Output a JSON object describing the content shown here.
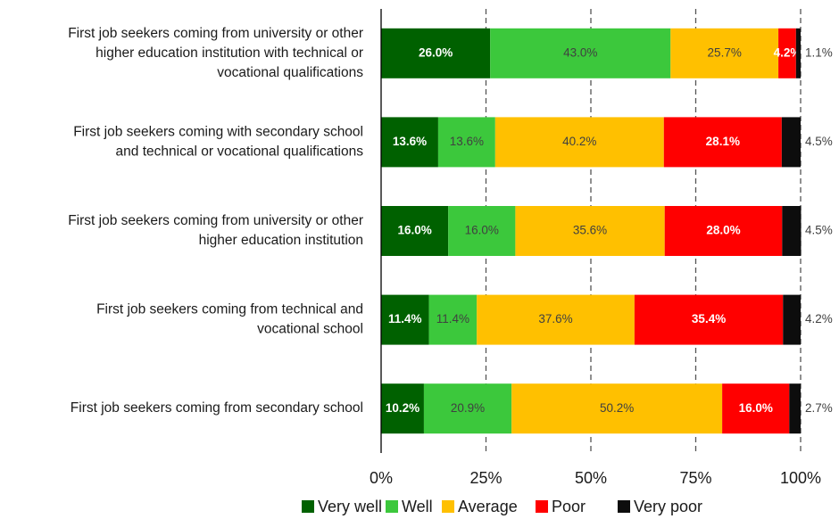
{
  "chart_data": {
    "type": "stacked_barh",
    "categories": [
      "First job seekers coming from university or other higher education institution with technical or vocational qualifications",
      "First job seekers coming with secondary school and technical or vocational qualifications",
      "First job seekers coming from university or other higher education institution",
      "First job seekers coming from technical and vocational school",
      "First job seekers coming from secondary school"
    ],
    "series": [
      {
        "name": "Very well",
        "color": "#006100",
        "label_color": "#ffffff",
        "values": [
          26.0,
          13.6,
          16.0,
          11.4,
          10.2
        ],
        "value_labels": [
          "26.0%",
          "13.6%",
          "16.0%",
          "11.4%",
          "10.2%"
        ]
      },
      {
        "name": "Well",
        "color": "#3cc83c",
        "label_color": "#404040",
        "values": [
          43.0,
          13.6,
          16.0,
          11.4,
          20.9
        ],
        "value_labels": [
          "43.0%",
          "13.6%",
          "16.0%",
          "11.4%",
          "20.9%"
        ]
      },
      {
        "name": "Average",
        "color": "#ffc000",
        "label_color": "#404040",
        "values": [
          25.7,
          40.2,
          35.6,
          37.6,
          50.2
        ],
        "value_labels": [
          "25.7%",
          "40.2%",
          "35.6%",
          "37.6%",
          "50.2%"
        ]
      },
      {
        "name": "Poor",
        "color": "#ff0000",
        "label_color": "#ffffff",
        "values": [
          4.2,
          28.1,
          28.0,
          35.4,
          16.0
        ],
        "value_labels": [
          "4.2%",
          "28.1%",
          "28.0%",
          "35.4%",
          "16.0%"
        ]
      },
      {
        "name": "Very poor",
        "color": "#0d0d0d",
        "label_color": "#404040",
        "values": [
          1.1,
          4.5,
          4.5,
          4.2,
          2.7
        ],
        "value_labels": [
          "1.1%",
          "4.5%",
          "4.5%",
          "4.2%",
          "2.7%"
        ]
      }
    ],
    "xlim": [
      0,
      100
    ],
    "xticks": [
      {
        "value": 0,
        "label": "0%"
      },
      {
        "value": 25,
        "label": "25%"
      },
      {
        "value": 50,
        "label": "50%"
      },
      {
        "value": 75,
        "label": "75%"
      },
      {
        "value": 100,
        "label": "100%"
      }
    ],
    "grid": true,
    "legend": "bottom"
  }
}
